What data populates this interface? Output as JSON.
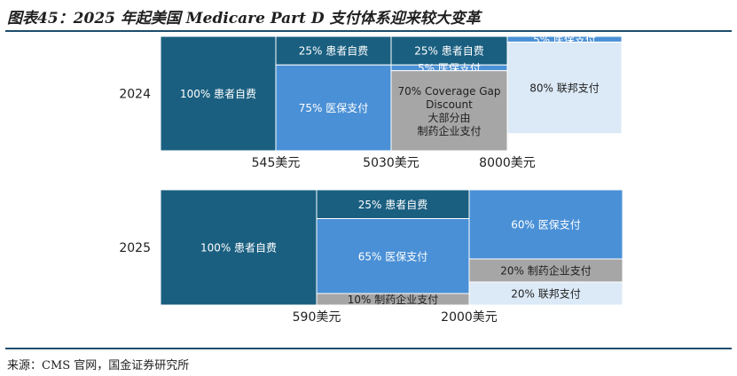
{
  "title": "图表45：2025 年起美国 Medicare Part D 支付体系迎来较大变革",
  "source": "来源：CMS 官网，国金证券研究所",
  "colors": {
    "dark_teal": "#1a5f80",
    "mid_blue": "#4a90d6",
    "gray": "#a6a6a6",
    "pale_blue": "#dce9f6",
    "rule": "#1c4e6e"
  },
  "chart_data": {
    "type": "bar",
    "rows": [
      {
        "label": "2024",
        "thresholds": [
          "545美元",
          "5030美元",
          "8000美元"
        ],
        "segments": [
          {
            "phase": 0,
            "stack": [
              {
                "text": "100% 患者自费",
                "share": 1.0,
                "color": "dark_teal"
              }
            ]
          },
          {
            "phase": 1,
            "stack": [
              {
                "text": "25% 患者自费",
                "share": 0.25,
                "color": "dark_teal"
              },
              {
                "text": "75% 医保支付",
                "share": 0.75,
                "color": "mid_blue"
              }
            ]
          },
          {
            "phase": 2,
            "stack": [
              {
                "text": "25% 患者自费",
                "share": 0.25,
                "color": "dark_teal"
              },
              {
                "text": "5% 医保支付",
                "share": 0.05,
                "color": "mid_blue"
              },
              {
                "text": "70% Coverage Gap\nDiscount\n大部分由\n制药企业支付",
                "share": 0.7,
                "color": "gray"
              }
            ]
          },
          {
            "phase": 3,
            "stack": [
              {
                "text": "5% 医保支付",
                "share": 0.05,
                "color": "mid_blue"
              },
              {
                "text": "80% 联邦支付",
                "share": 0.8,
                "color": "pale_blue"
              }
            ]
          }
        ]
      },
      {
        "label": "2025",
        "thresholds": [
          "590美元",
          "2000美元"
        ],
        "segments": [
          {
            "phase": 0,
            "stack": [
              {
                "text": "100% 患者自费",
                "share": 1.0,
                "color": "dark_teal"
              }
            ]
          },
          {
            "phase": 1,
            "stack": [
              {
                "text": "25% 患者自费",
                "share": 0.25,
                "color": "dark_teal"
              },
              {
                "text": "65% 医保支付",
                "share": 0.65,
                "color": "mid_blue"
              },
              {
                "text": "10% 制药企业支付",
                "share": 0.1,
                "color": "gray"
              }
            ]
          },
          {
            "phase": 2,
            "stack": [
              {
                "text": "60% 医保支付",
                "share": 0.6,
                "color": "mid_blue"
              },
              {
                "text": "20% 制药企业支付",
                "share": 0.2,
                "color": "gray"
              },
              {
                "text": "20% 联邦支付",
                "share": 0.2,
                "color": "pale_blue"
              }
            ]
          }
        ]
      }
    ]
  }
}
